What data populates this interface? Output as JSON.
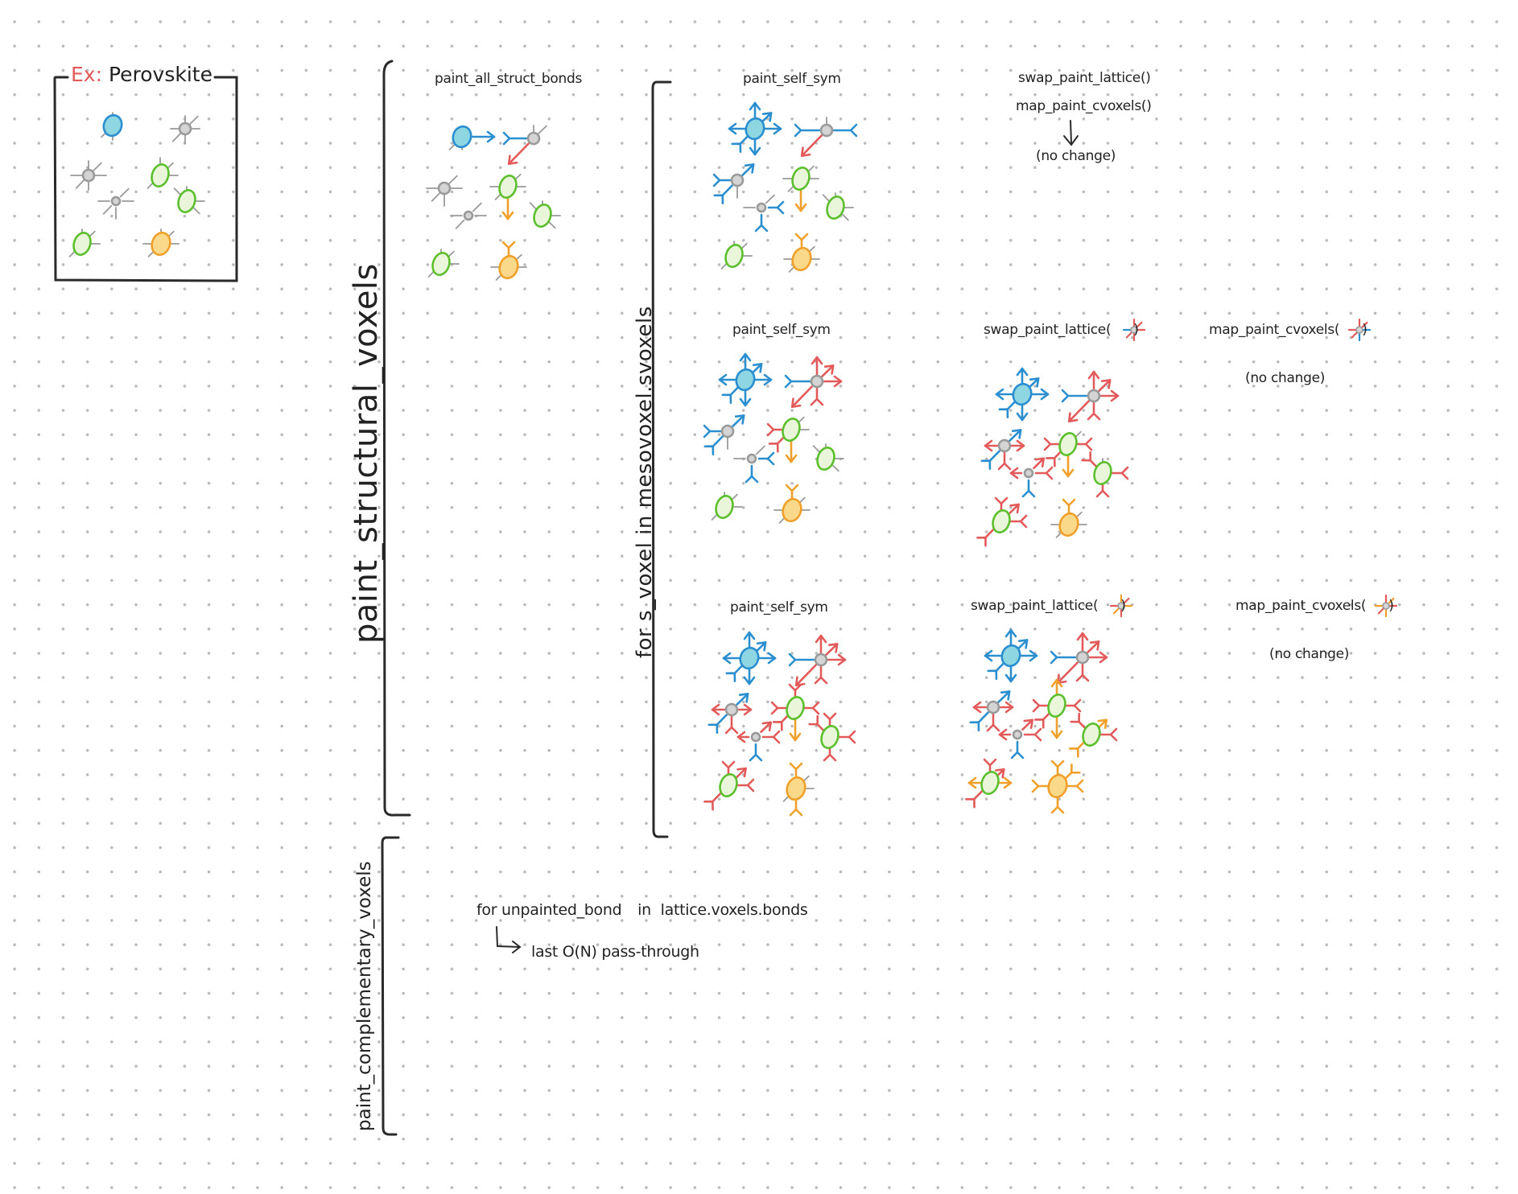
{
  "example": {
    "prefix": "Ex:",
    "name": "Perovskite"
  },
  "sections": {
    "structural": "paint_structural_voxels",
    "loop": "for s_voxel in mesovoxel.svoxels",
    "complementary": "paint_complementary_voxels"
  },
  "labels": {
    "all_bonds": "paint_all_struct_bonds",
    "self_sym_1": "paint_self_sym",
    "self_sym_2": "paint_self_sym",
    "self_sym_3": "paint_self_sym",
    "swap_1": "swap_paint_lattice()",
    "map_1": "map_paint_cvoxels()",
    "no_change_1": "(no change)",
    "swap_2": "swap_paint_lattice(",
    "map_2": "map_paint_cvoxels(",
    "no_change_2": "(no change)",
    "swap_3": "swap_paint_lattice(",
    "map_3": "map_paint_cvoxels(",
    "no_change_3": "(no change)",
    "close_paren": ")"
  },
  "complementary_notes": {
    "line1_a": "for",
    "line1_b": "unpainted_bond",
    "line1_c": "in",
    "line1_d": "lattice.voxels.bonds",
    "line2": "last O(N) pass-through"
  },
  "colors": {
    "blue": "#2b8fcf",
    "cyan_fill": "#8fd6e3",
    "green": "#5bbf2e",
    "green_fill": "#e9f6d9",
    "orange": "#f0a02a",
    "orange_fill": "#fbd98a",
    "red": "#e25a5a",
    "gray": "#9a9a9a",
    "gray_fill": "#d4d4d4"
  }
}
